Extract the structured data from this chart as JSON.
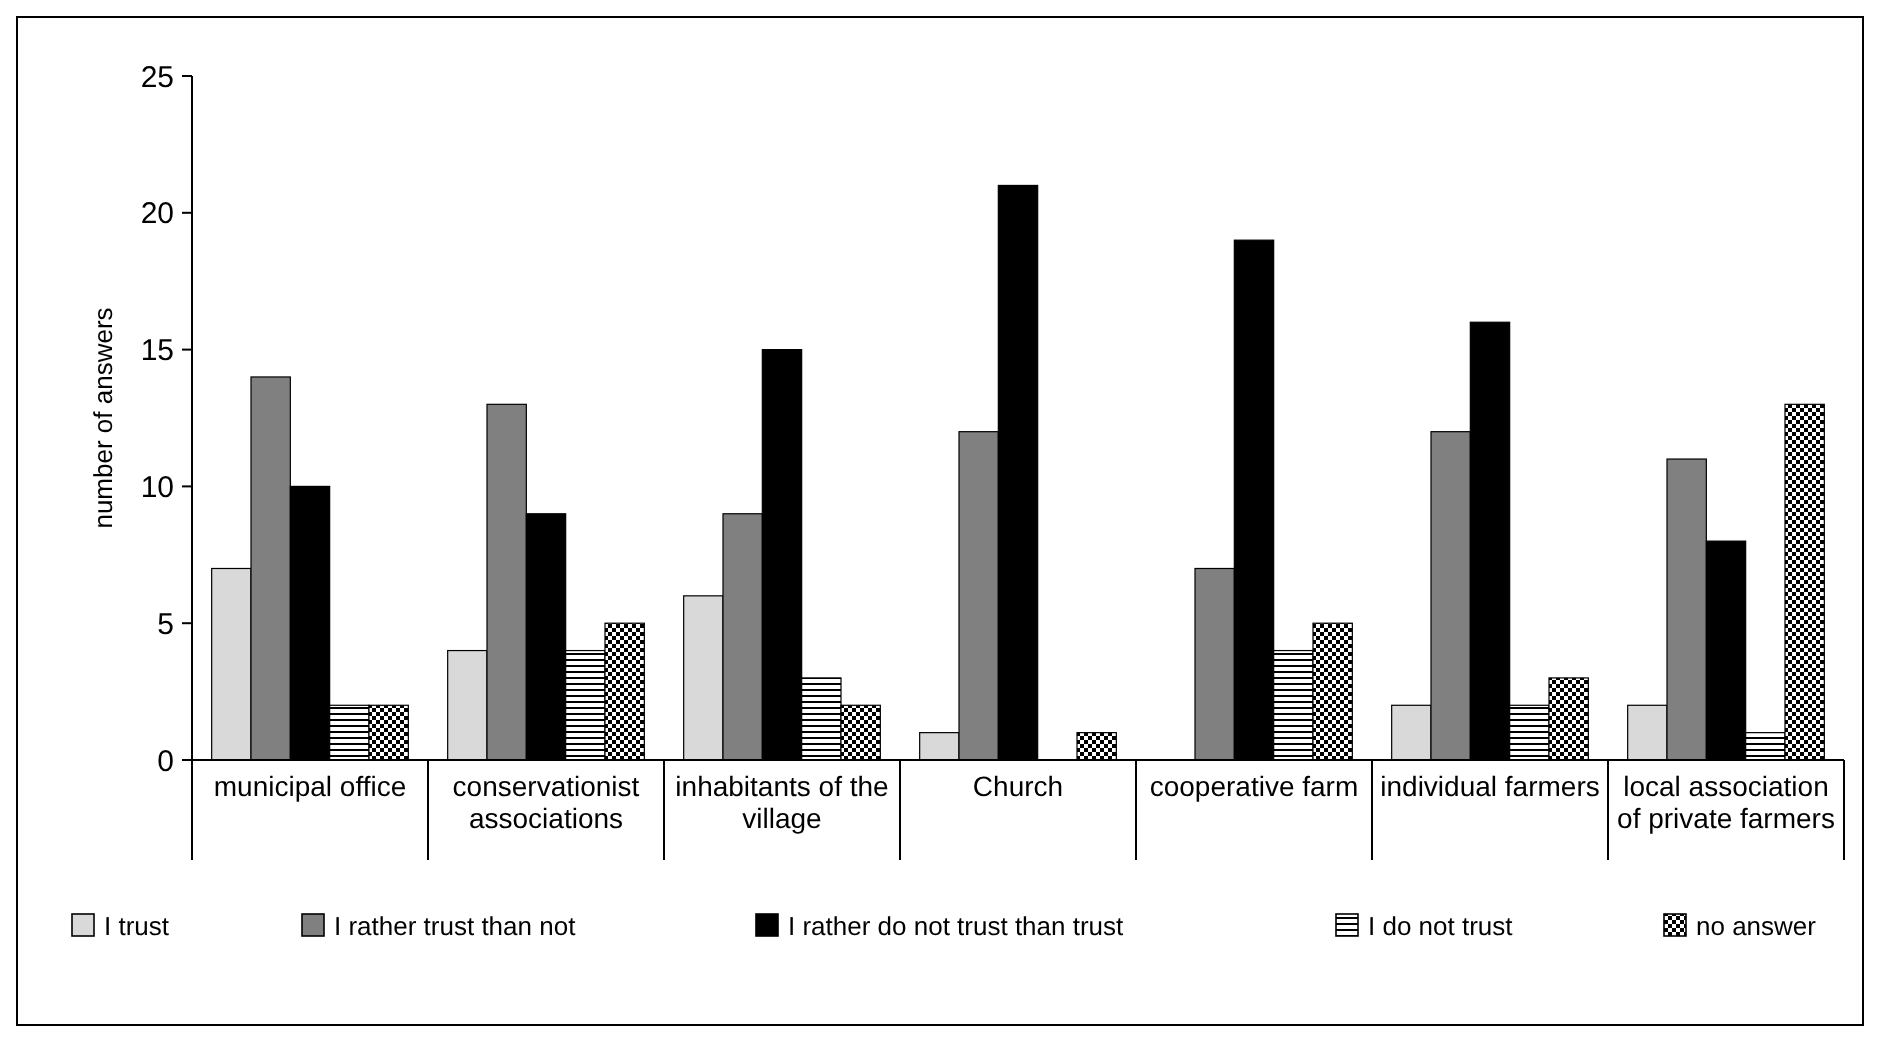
{
  "chart_data": {
    "type": "bar",
    "ylabel": "number of answers",
    "categories": [
      "municipal office",
      "conservationist associations",
      "inhabitants of the village",
      "Church",
      "cooperative farm",
      "individual farmers",
      "local association of private farmers"
    ],
    "series": [
      {
        "name": "I trust",
        "color": "#d9d9d9",
        "values": [
          7,
          4,
          6,
          1,
          0,
          2,
          2
        ]
      },
      {
        "name": "I rather trust than not",
        "color": "#808080",
        "values": [
          14,
          13,
          9,
          12,
          7,
          12,
          11
        ]
      },
      {
        "name": "I rather do not trust than trust",
        "color": "#000000",
        "values": [
          10,
          9,
          15,
          21,
          19,
          16,
          8
        ]
      },
      {
        "name": "I do not trust",
        "color": "#000000",
        "values": [
          2,
          4,
          3,
          0,
          4,
          2,
          1
        ]
      },
      {
        "name": "no answer",
        "color": "#000000",
        "values": [
          2,
          5,
          2,
          1,
          5,
          3,
          13
        ]
      }
    ],
    "ylim": [
      0,
      25
    ],
    "yticks": [
      0,
      5,
      10,
      15,
      20,
      25
    ],
    "legend": "bottom"
  }
}
